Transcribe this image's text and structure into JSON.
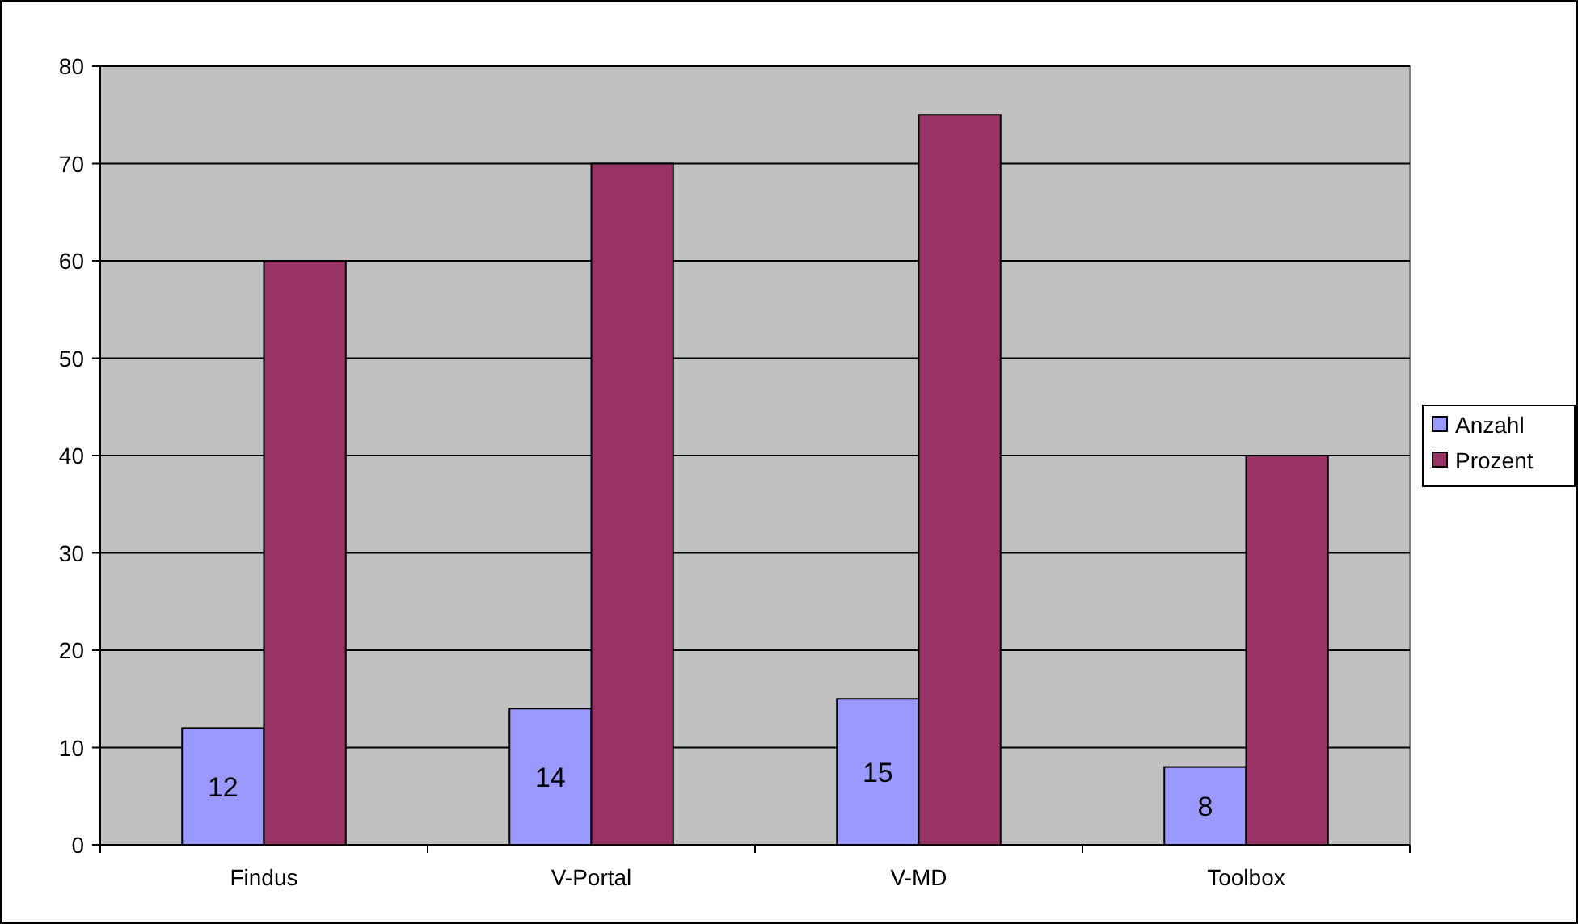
{
  "chart_data": {
    "type": "bar",
    "categories": [
      "Findus",
      "V-Portal",
      "V-MD",
      "Toolbox"
    ],
    "series": [
      {
        "name": "Anzahl",
        "color": "#9999ff",
        "values": [
          12,
          14,
          15,
          8
        ],
        "value_labels": [
          "12",
          "14",
          "15",
          "8"
        ]
      },
      {
        "name": "Prozent",
        "color": "#993366",
        "values": [
          60,
          70,
          75,
          40
        ]
      }
    ],
    "ylim": [
      0,
      80
    ],
    "yticks": [
      0,
      10,
      20,
      30,
      40,
      50,
      60,
      70,
      80
    ],
    "grid": "y",
    "legend": "right"
  }
}
